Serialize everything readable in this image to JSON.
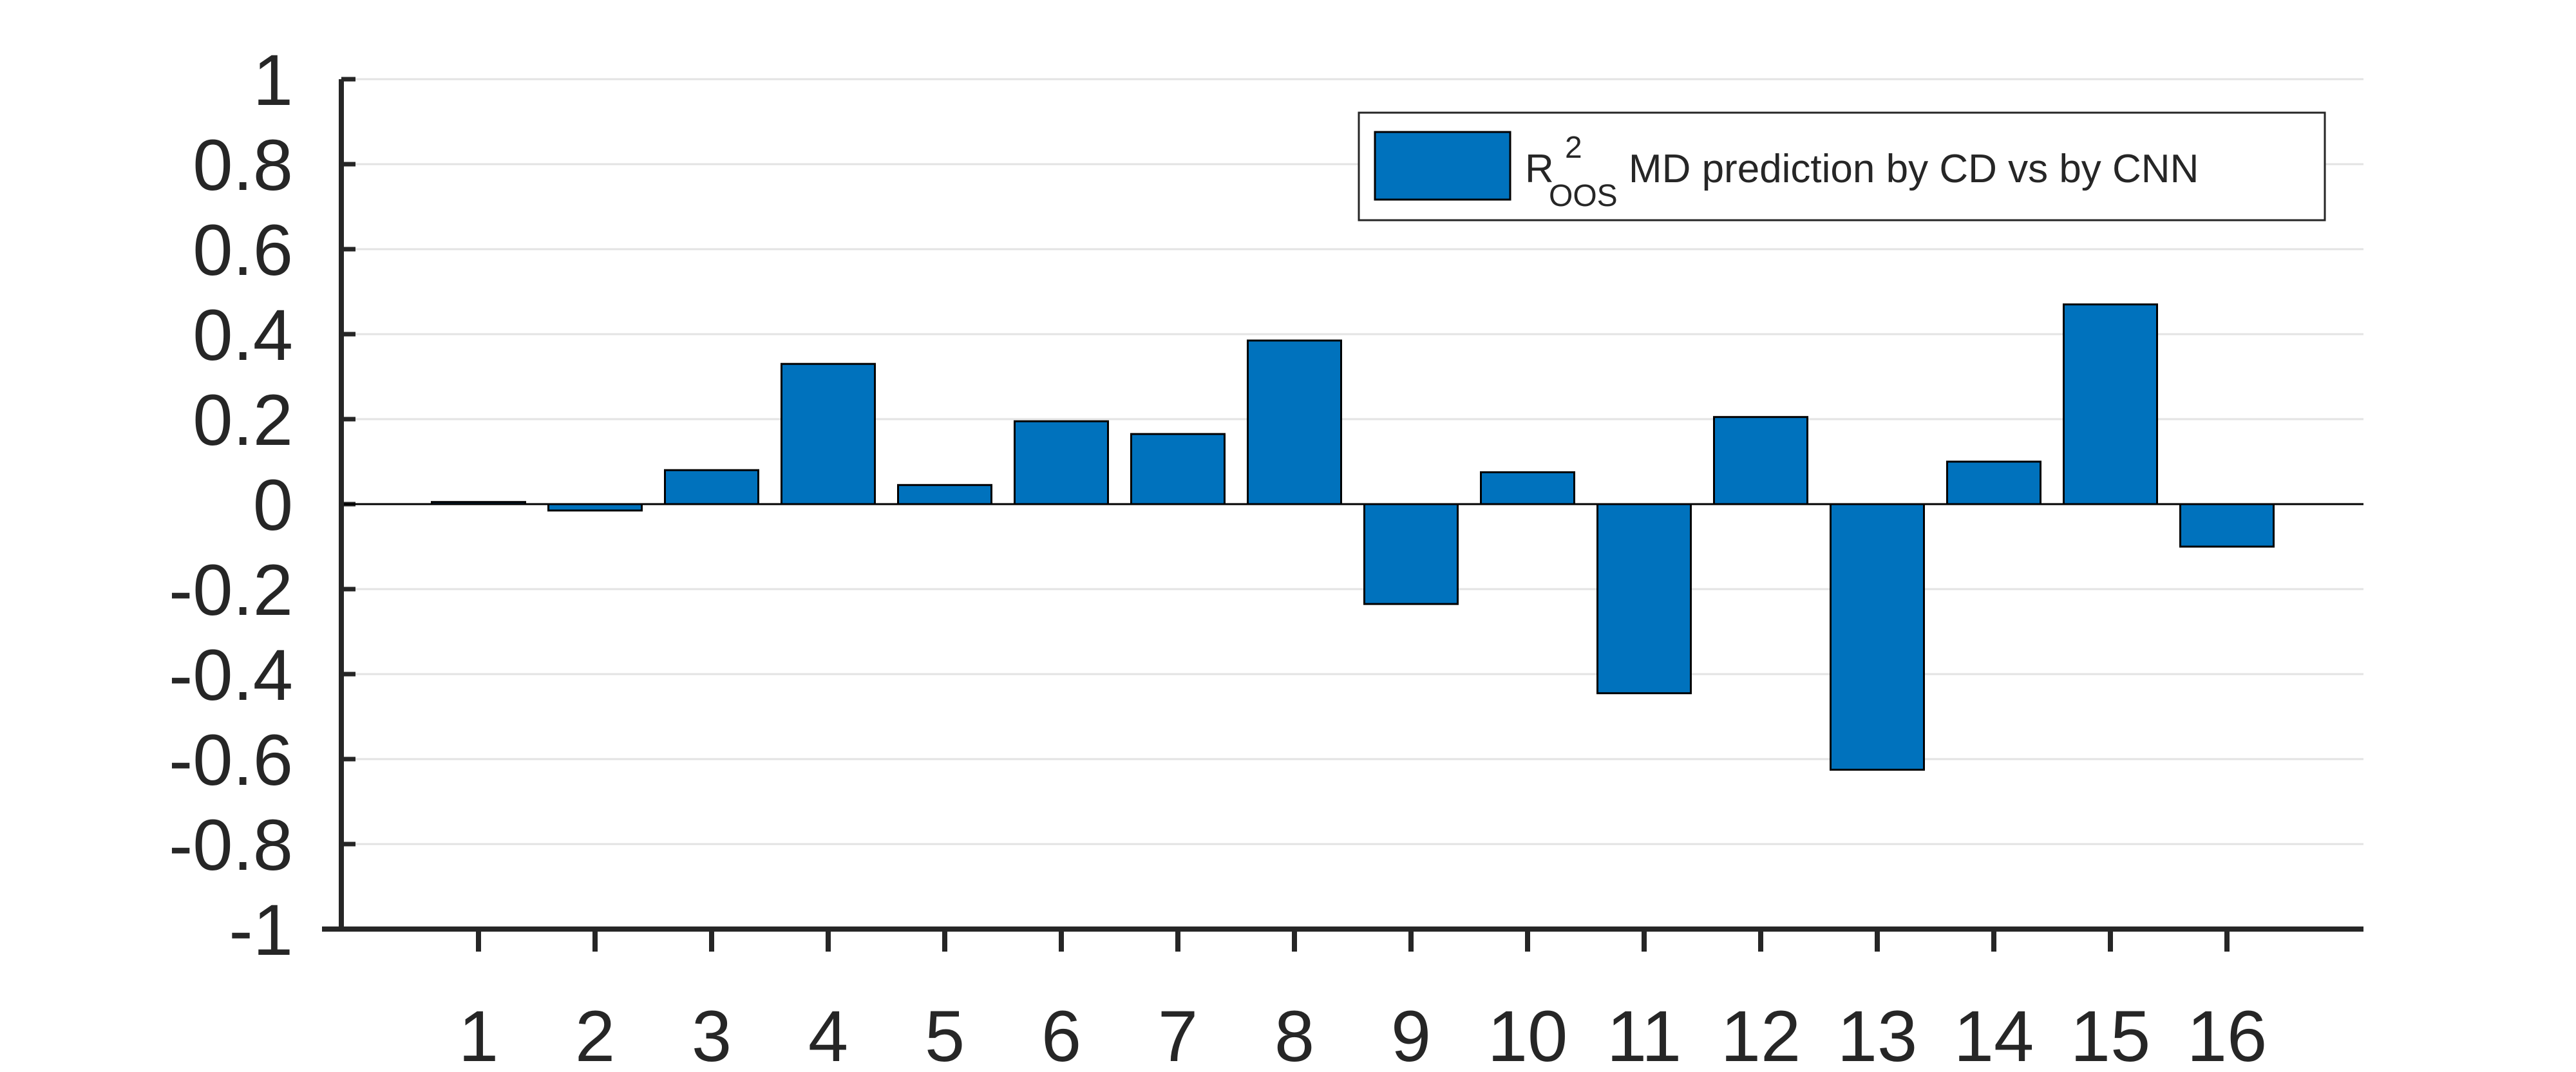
{
  "chart_data": {
    "type": "bar",
    "categories": [
      "1",
      "2",
      "3",
      "4",
      "5",
      "6",
      "7",
      "8",
      "9",
      "10",
      "11",
      "12",
      "13",
      "14",
      "15",
      "16"
    ],
    "series": [
      {
        "name": "R²OOS MD prediction by CD vs by CNN",
        "values": [
          0.005,
          -0.015,
          0.08,
          0.33,
          0.045,
          0.195,
          0.165,
          0.385,
          -0.235,
          0.075,
          -0.445,
          0.205,
          -0.625,
          0.1,
          0.47,
          -0.1
        ]
      }
    ],
    "ylim": [
      -1,
      1
    ],
    "yticks": [
      -1,
      -0.8,
      -0.6,
      -0.4,
      -0.2,
      0,
      0.2,
      0.4,
      0.6,
      0.8,
      1
    ],
    "ytick_labels": [
      "-1",
      "-0.8",
      "-0.6",
      "-0.4",
      "-0.2",
      "0",
      "0.2",
      "0.4",
      "0.6",
      "0.8",
      "1"
    ],
    "grid": "horizontal",
    "legend": {
      "placement": "top-right",
      "base": "R",
      "sup": "2",
      "sub": "OOS",
      "rest": " MD prediction by CD vs by CNN"
    },
    "colors": {
      "bar": "#0072BD",
      "bar_edge": "#000000",
      "axis": "#262626",
      "grid": "#e3e3e3"
    }
  }
}
